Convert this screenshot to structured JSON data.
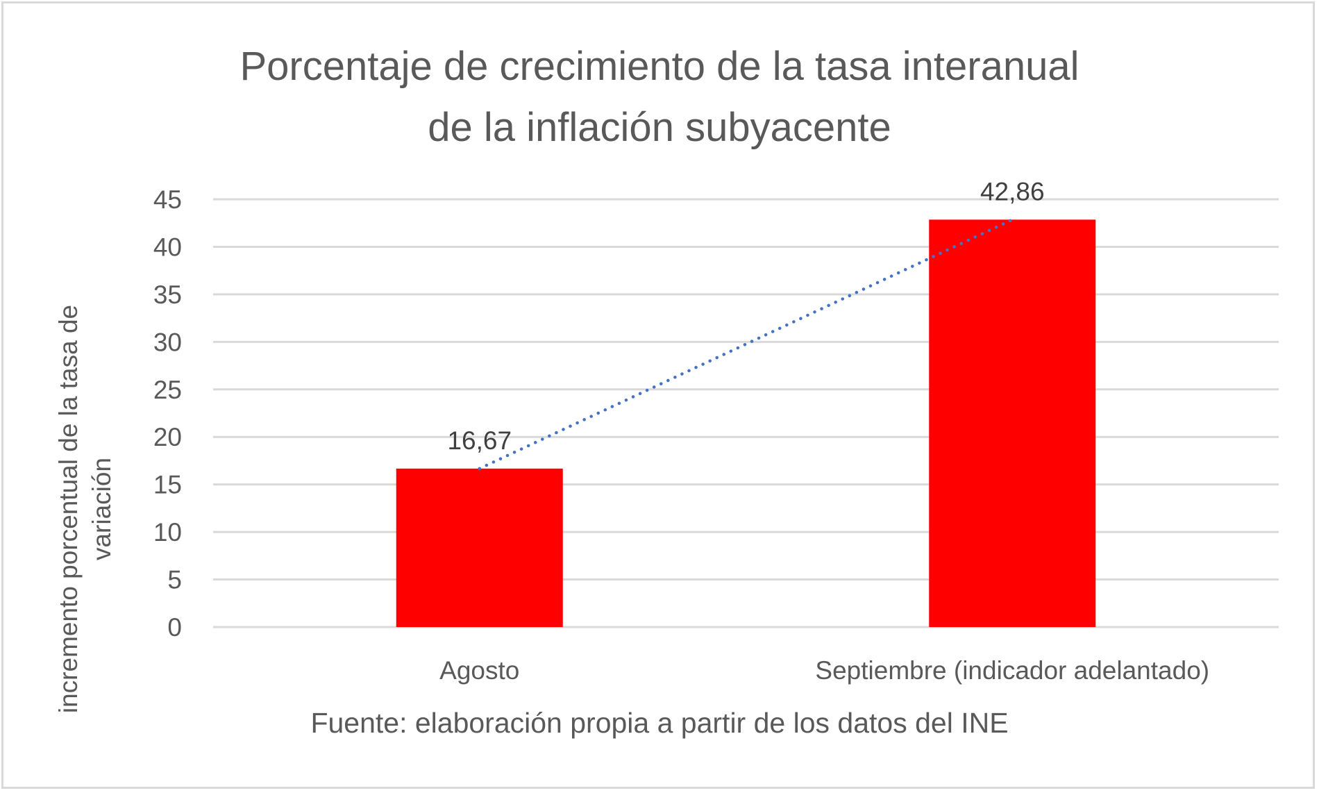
{
  "chart_data": {
    "type": "bar",
    "title": "Porcentaje de crecimiento de la tasa interanual de la inflación subyacente",
    "title_lines": [
      "Porcentaje de crecimiento de la tasa interanual",
      "de la inflación subyacente"
    ],
    "categories": [
      "Agosto",
      "Septiembre (indicador adelantado)"
    ],
    "values": [
      16.67,
      42.86
    ],
    "data_labels": [
      "16,67",
      "42,86"
    ],
    "xlabel": "Fuente: elaboración propia a partir de los datos del INE",
    "ylabel_lines": [
      "incremento porcentual de la tasa de",
      "variación"
    ],
    "ylim": [
      0,
      45
    ],
    "yticks": [
      0,
      5,
      10,
      15,
      20,
      25,
      30,
      35,
      40,
      45
    ],
    "grid": true,
    "trendline": "linear, dotted",
    "colors": {
      "bar": "#ff0000",
      "trendline": "#4472c4",
      "grid": "#d9d9d9",
      "text": "#595959"
    }
  }
}
